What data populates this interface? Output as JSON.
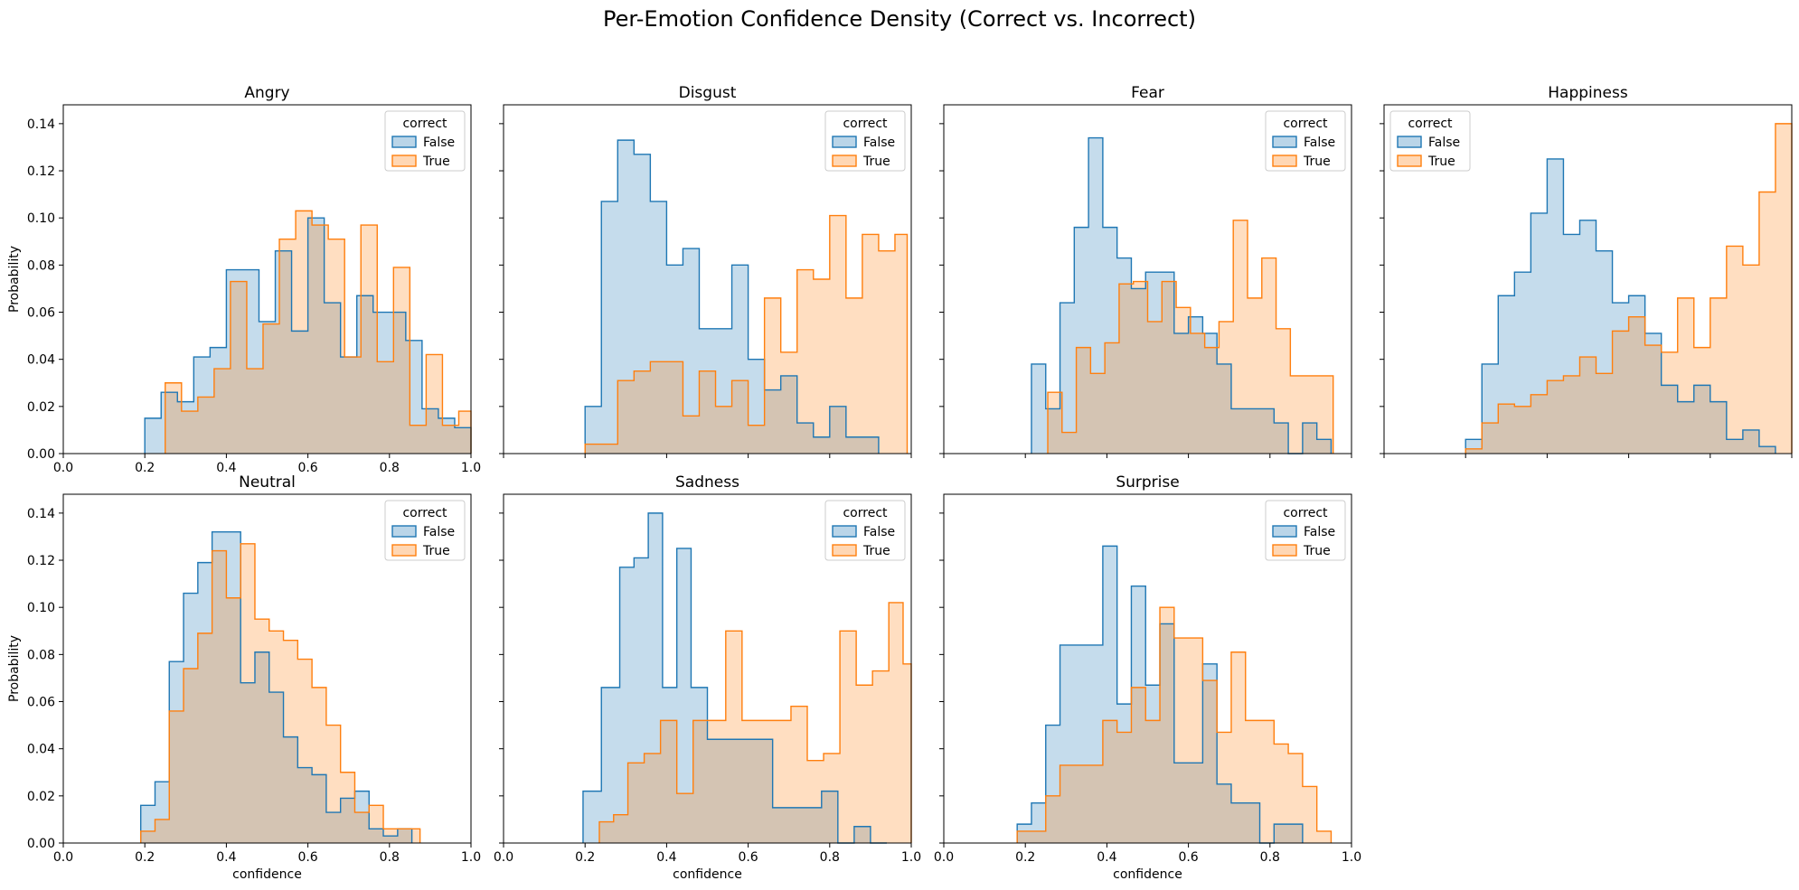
{
  "figure": {
    "title": "Per-Emotion Confidence Density (Correct vs. Incorrect)"
  },
  "colors": {
    "False": "#1f77b4",
    "True": "#ff7f0e",
    "false_fill": "#1f77b4",
    "true_fill": "#ff7f0e"
  },
  "chart_data": [
    {
      "type": "histogram",
      "title": "Angry",
      "xlabel": "",
      "ylabel": "Probability",
      "xlim": [
        0,
        1
      ],
      "ylim": [
        0,
        0.148
      ],
      "xticks": [
        "0.0",
        "0.2",
        "0.4",
        "0.6",
        "0.8",
        "1.0"
      ],
      "yticks": [
        "0.00",
        "0.02",
        "0.04",
        "0.06",
        "0.08",
        "0.10",
        "0.12",
        "0.14"
      ],
      "legend": {
        "title": "correct",
        "entries": [
          "False",
          "True"
        ],
        "position": "upper right"
      },
      "series": [
        {
          "name": "False",
          "edges": [
            0.2,
            0.24,
            0.28,
            0.32,
            0.36,
            0.4,
            0.44,
            0.48,
            0.52,
            0.56,
            0.6,
            0.64,
            0.68,
            0.72,
            0.76,
            0.8,
            0.84,
            0.88,
            0.92,
            0.96,
            1.0
          ],
          "values": [
            0.015,
            0.026,
            0.022,
            0.041,
            0.045,
            0.078,
            0.078,
            0.056,
            0.086,
            0.052,
            0.1,
            0.064,
            0.041,
            0.067,
            0.06,
            0.06,
            0.048,
            0.019,
            0.015,
            0.011
          ]
        },
        {
          "name": "True",
          "edges": [
            0.25,
            0.29,
            0.33,
            0.37,
            0.41,
            0.45,
            0.49,
            0.53,
            0.57,
            0.61,
            0.65,
            0.69,
            0.73,
            0.77,
            0.81,
            0.85,
            0.89,
            0.93,
            0.97,
            1.0
          ],
          "values": [
            0.03,
            0.018,
            0.024,
            0.036,
            0.073,
            0.036,
            0.055,
            0.091,
            0.103,
            0.097,
            0.091,
            0.041,
            0.097,
            0.039,
            0.079,
            0.012,
            0.042,
            0.012,
            0.018
          ]
        }
      ]
    },
    {
      "type": "histogram",
      "title": "Disgust",
      "xlabel": "",
      "ylabel": "",
      "xlim": [
        0,
        1
      ],
      "ylim": [
        0,
        0.148
      ],
      "legend": {
        "title": "correct",
        "entries": [
          "False",
          "True"
        ],
        "position": "upper right"
      },
      "series": [
        {
          "name": "False",
          "edges": [
            0.2,
            0.24,
            0.28,
            0.32,
            0.36,
            0.4,
            0.44,
            0.48,
            0.52,
            0.56,
            0.6,
            0.64,
            0.68,
            0.72,
            0.76,
            0.8,
            0.84,
            0.88,
            0.92
          ],
          "values": [
            0.02,
            0.107,
            0.133,
            0.127,
            0.107,
            0.08,
            0.087,
            0.053,
            0.053,
            0.08,
            0.04,
            0.027,
            0.033,
            0.013,
            0.007,
            0.02,
            0.007,
            0.007
          ]
        },
        {
          "name": "True",
          "edges": [
            0.2,
            0.24,
            0.28,
            0.32,
            0.36,
            0.4,
            0.44,
            0.48,
            0.52,
            0.56,
            0.6,
            0.64,
            0.68,
            0.72,
            0.76,
            0.8,
            0.84,
            0.88,
            0.92,
            0.96,
            0.99
          ],
          "values": [
            0.004,
            0.004,
            0.031,
            0.035,
            0.039,
            0.039,
            0.016,
            0.035,
            0.02,
            0.031,
            0.012,
            0.066,
            0.043,
            0.078,
            0.074,
            0.101,
            0.066,
            0.093,
            0.086,
            0.093
          ]
        }
      ]
    },
    {
      "type": "histogram",
      "title": "Fear",
      "xlabel": "",
      "ylabel": "",
      "xlim": [
        0,
        1
      ],
      "ylim": [
        0,
        0.148
      ],
      "legend": {
        "title": "correct",
        "entries": [
          "False",
          "True"
        ],
        "position": "upper right"
      },
      "series": [
        {
          "name": "False",
          "edges": [
            0.215,
            0.25,
            0.285,
            0.32,
            0.355,
            0.39,
            0.425,
            0.46,
            0.495,
            0.53,
            0.565,
            0.6,
            0.635,
            0.67,
            0.705,
            0.74,
            0.775,
            0.81,
            0.845,
            0.88,
            0.915,
            0.95
          ],
          "values": [
            0.038,
            0.019,
            0.064,
            0.096,
            0.134,
            0.096,
            0.083,
            0.07,
            0.077,
            0.077,
            0.051,
            0.058,
            0.051,
            0.038,
            0.019,
            0.019,
            0.019,
            0.013,
            0.0,
            0.013,
            0.006
          ]
        },
        {
          "name": "True",
          "edges": [
            0.255,
            0.29,
            0.325,
            0.36,
            0.395,
            0.43,
            0.465,
            0.5,
            0.535,
            0.57,
            0.605,
            0.64,
            0.675,
            0.71,
            0.745,
            0.78,
            0.815,
            0.85,
            0.885,
            0.92,
            0.955
          ],
          "values": [
            0.026,
            0.009,
            0.045,
            0.034,
            0.047,
            0.072,
            0.073,
            0.056,
            0.073,
            0.062,
            0.051,
            0.045,
            0.056,
            0.099,
            0.066,
            0.083,
            0.053,
            0.033,
            0.033,
            0.033
          ]
        }
      ]
    },
    {
      "type": "histogram",
      "title": "Happiness",
      "xlabel": "",
      "ylabel": "",
      "xlim": [
        0,
        1
      ],
      "ylim": [
        0,
        0.148
      ],
      "legend": {
        "title": "correct",
        "entries": [
          "False",
          "True"
        ],
        "position": "upper left"
      },
      "series": [
        {
          "name": "False",
          "edges": [
            0.2,
            0.24,
            0.28,
            0.32,
            0.36,
            0.4,
            0.44,
            0.48,
            0.52,
            0.56,
            0.6,
            0.64,
            0.68,
            0.72,
            0.76,
            0.8,
            0.84,
            0.88,
            0.92,
            0.96
          ],
          "values": [
            0.006,
            0.038,
            0.067,
            0.077,
            0.102,
            0.125,
            0.093,
            0.099,
            0.086,
            0.064,
            0.067,
            0.051,
            0.029,
            0.022,
            0.029,
            0.022,
            0.006,
            0.01,
            0.003
          ]
        },
        {
          "name": "True",
          "edges": [
            0.2,
            0.24,
            0.28,
            0.32,
            0.36,
            0.4,
            0.44,
            0.48,
            0.52,
            0.56,
            0.6,
            0.64,
            0.68,
            0.72,
            0.76,
            0.8,
            0.84,
            0.88,
            0.92,
            0.96,
            1.0
          ],
          "values": [
            0.002,
            0.013,
            0.021,
            0.02,
            0.025,
            0.031,
            0.033,
            0.041,
            0.034,
            0.052,
            0.058,
            0.046,
            0.043,
            0.066,
            0.045,
            0.066,
            0.088,
            0.08,
            0.111,
            0.14
          ]
        }
      ]
    },
    {
      "type": "histogram",
      "title": "Neutral",
      "xlabel": "confidence",
      "ylabel": "Probability",
      "xlim": [
        0,
        1
      ],
      "ylim": [
        0,
        0.148
      ],
      "xticks": [
        "0.0",
        "0.2",
        "0.4",
        "0.6",
        "0.8",
        "1.0"
      ],
      "yticks": [
        "0.00",
        "0.02",
        "0.04",
        "0.06",
        "0.08",
        "0.10",
        "0.12",
        "0.14"
      ],
      "legend": {
        "title": "correct",
        "entries": [
          "False",
          "True"
        ],
        "position": "upper right"
      },
      "series": [
        {
          "name": "False",
          "edges": [
            0.19,
            0.225,
            0.26,
            0.295,
            0.33,
            0.365,
            0.4,
            0.435,
            0.47,
            0.505,
            0.54,
            0.575,
            0.61,
            0.645,
            0.68,
            0.715,
            0.75,
            0.785,
            0.82,
            0.855
          ],
          "values": [
            0.016,
            0.026,
            0.077,
            0.106,
            0.119,
            0.132,
            0.132,
            0.068,
            0.081,
            0.064,
            0.045,
            0.032,
            0.029,
            0.013,
            0.019,
            0.022,
            0.006,
            0.003,
            0.006
          ]
        },
        {
          "name": "True",
          "edges": [
            0.19,
            0.225,
            0.26,
            0.295,
            0.33,
            0.365,
            0.4,
            0.435,
            0.47,
            0.505,
            0.54,
            0.575,
            0.61,
            0.645,
            0.68,
            0.715,
            0.75,
            0.785,
            0.82,
            0.855,
            0.875
          ],
          "values": [
            0.005,
            0.01,
            0.056,
            0.074,
            0.089,
            0.124,
            0.104,
            0.127,
            0.095,
            0.09,
            0.086,
            0.078,
            0.066,
            0.05,
            0.03,
            0.013,
            0.016,
            0.006,
            0.006,
            0.006
          ]
        }
      ]
    },
    {
      "type": "histogram",
      "title": "Sadness",
      "xlabel": "confidence",
      "ylabel": "",
      "xlim": [
        0,
        1
      ],
      "ylim": [
        0,
        0.148
      ],
      "xticks": [
        "0.0",
        "0.2",
        "0.4",
        "0.6",
        "0.8",
        "1.0"
      ],
      "legend": {
        "title": "correct",
        "entries": [
          "False",
          "True"
        ],
        "position": "upper right"
      },
      "series": [
        {
          "name": "False",
          "edges": [
            0.195,
            0.24,
            0.285,
            0.32,
            0.355,
            0.39,
            0.425,
            0.46,
            0.5,
            0.54,
            0.58,
            0.62,
            0.66,
            0.7,
            0.74,
            0.78,
            0.82,
            0.86,
            0.9,
            0.94
          ],
          "values": [
            0.022,
            0.066,
            0.117,
            0.121,
            0.14,
            0.066,
            0.125,
            0.066,
            0.044,
            0.044,
            0.044,
            0.044,
            0.015,
            0.015,
            0.015,
            0.022,
            0.0,
            0.007,
            0.0
          ]
        },
        {
          "name": "True",
          "edges": [
            0.235,
            0.27,
            0.305,
            0.345,
            0.385,
            0.425,
            0.465,
            0.505,
            0.545,
            0.585,
            0.625,
            0.665,
            0.705,
            0.745,
            0.785,
            0.825,
            0.865,
            0.905,
            0.945,
            0.98,
            1.0
          ],
          "values": [
            0.009,
            0.012,
            0.034,
            0.038,
            0.052,
            0.021,
            0.052,
            0.052,
            0.09,
            0.052,
            0.052,
            0.052,
            0.058,
            0.035,
            0.038,
            0.09,
            0.067,
            0.073,
            0.102,
            0.076
          ]
        }
      ]
    },
    {
      "type": "histogram",
      "title": "Surprise",
      "xlabel": "confidence",
      "ylabel": "",
      "xlim": [
        0,
        1
      ],
      "ylim": [
        0,
        0.148
      ],
      "xticks": [
        "0.0",
        "0.2",
        "0.4",
        "0.6",
        "0.8",
        "1.0"
      ],
      "legend": {
        "title": "correct",
        "entries": [
          "False",
          "True"
        ],
        "position": "upper right"
      },
      "series": [
        {
          "name": "False",
          "edges": [
            0.18,
            0.215,
            0.25,
            0.285,
            0.32,
            0.355,
            0.39,
            0.425,
            0.46,
            0.495,
            0.53,
            0.565,
            0.6,
            0.635,
            0.67,
            0.705,
            0.74,
            0.775,
            0.81,
            0.845,
            0.88
          ],
          "values": [
            0.008,
            0.017,
            0.05,
            0.084,
            0.084,
            0.084,
            0.126,
            0.059,
            0.109,
            0.067,
            0.093,
            0.034,
            0.034,
            0.076,
            0.025,
            0.017,
            0.017,
            0.0,
            0.008,
            0.008
          ]
        },
        {
          "name": "True",
          "edges": [
            0.18,
            0.215,
            0.25,
            0.285,
            0.32,
            0.355,
            0.39,
            0.425,
            0.46,
            0.495,
            0.53,
            0.565,
            0.6,
            0.635,
            0.67,
            0.705,
            0.74,
            0.775,
            0.81,
            0.845,
            0.88,
            0.915,
            0.95
          ],
          "values": [
            0.005,
            0.005,
            0.02,
            0.033,
            0.033,
            0.033,
            0.052,
            0.047,
            0.066,
            0.052,
            0.1,
            0.087,
            0.087,
            0.069,
            0.047,
            0.081,
            0.052,
            0.052,
            0.042,
            0.038,
            0.024,
            0.005
          ]
        }
      ]
    }
  ]
}
